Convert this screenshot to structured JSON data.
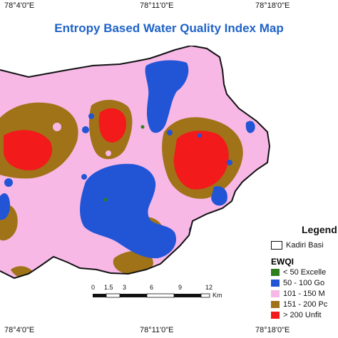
{
  "title": "Entropy Based Water Quality Index Map",
  "top_coords": [
    "78°4'0\"E",
    "78°11'0\"E",
    "78°18'0\"E"
  ],
  "bottom_coords": [
    "78°4'0\"E",
    "78°11'0\"E",
    "78°18'0\"E"
  ],
  "legend": {
    "title": "Legend",
    "boundary_label": "Kadiri Basi",
    "section_title": "EWQI",
    "classes": [
      {
        "label": "< 50 Excelle",
        "color": "#2e7d1e"
      },
      {
        "label": "50 - 100 Go",
        "color": "#2155d6"
      },
      {
        "label": "101 - 150 M",
        "color": "#f7b8e6"
      },
      {
        "label": "151 - 200 Pc",
        "color": "#a07318"
      },
      {
        "label": "> 200 Unfit",
        "color": "#f21a1a"
      }
    ]
  },
  "scale": {
    "ticks": [
      "0",
      "1.5",
      "3",
      "6",
      "9",
      "12"
    ],
    "unit": "Km"
  },
  "colors": {
    "title": "#1f63c8",
    "excellent": "#2e7d1e",
    "good": "#2155d6",
    "moderate": "#f7b8e6",
    "poor": "#a07318",
    "unfit": "#f21a1a",
    "boundary": "#111111"
  }
}
